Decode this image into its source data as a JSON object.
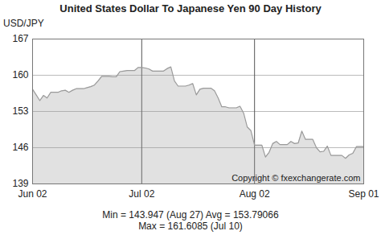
{
  "chart_data": {
    "type": "area",
    "title": "United States Dollar To Japanese Yen 90 Day History",
    "y_label": "USD/JPY",
    "annotations": [
      "Copyright © fxexchangerate.com",
      "Min = 143.947 (Aug 27) Avg = 153.79066",
      "Max = 161.6085 (Jul 10)"
    ],
    "categories": [
      "Jun 02",
      null,
      null,
      null,
      null,
      null,
      null,
      null,
      null,
      null,
      null,
      null,
      null,
      null,
      null,
      null,
      null,
      null,
      null,
      null,
      null,
      null,
      null,
      null,
      null,
      null,
      null,
      null,
      null,
      null,
      "Jul 02",
      null,
      null,
      null,
      null,
      null,
      null,
      null,
      null,
      null,
      null,
      null,
      null,
      null,
      null,
      null,
      null,
      null,
      null,
      null,
      null,
      null,
      null,
      null,
      null,
      null,
      null,
      null,
      null,
      null,
      null,
      "Aug 02",
      null,
      null,
      null,
      null,
      null,
      null,
      null,
      null,
      null,
      null,
      null,
      null,
      null,
      null,
      null,
      null,
      null,
      null,
      null,
      null,
      null,
      null,
      null,
      null,
      null,
      null,
      null,
      null,
      null,
      "Sep 01"
    ],
    "values": [
      157.3,
      156.2,
      155.1,
      156.1,
      155.6,
      156.7,
      156.7,
      156.7,
      157.0,
      157.1,
      156.7,
      157.1,
      157.4,
      157.4,
      157.4,
      157.6,
      157.8,
      158.1,
      158.9,
      159.8,
      159.8,
      159.8,
      159.7,
      159.7,
      160.7,
      160.8,
      160.9,
      160.9,
      160.9,
      161.5,
      161.5,
      161.4,
      161.2,
      160.8,
      160.8,
      160.8,
      160.8,
      161.3,
      161.6085,
      158.9,
      157.9,
      157.9,
      157.9,
      158.1,
      158.4,
      156.2,
      157.3,
      157.5,
      157.5,
      157.5,
      157.0,
      155.6,
      153.9,
      153.9,
      153.7,
      153.7,
      153.7,
      154.0,
      152.7,
      150.0,
      149.3,
      146.5,
      146.5,
      146.5,
      144.2,
      145.1,
      146.8,
      147.2,
      146.6,
      146.6,
      146.6,
      147.2,
      146.8,
      146.9,
      149.2,
      147.6,
      147.6,
      147.6,
      146.0,
      145.2,
      145.3,
      146.3,
      144.5,
      144.5,
      144.5,
      144.5,
      143.947,
      144.6,
      144.9,
      146.2,
      146.2,
      146.2
    ],
    "color": "#9a9a9a",
    "ylim": [
      139,
      167
    ],
    "yticks": [
      139,
      146,
      153,
      160,
      167
    ],
    "grid": true
  }
}
